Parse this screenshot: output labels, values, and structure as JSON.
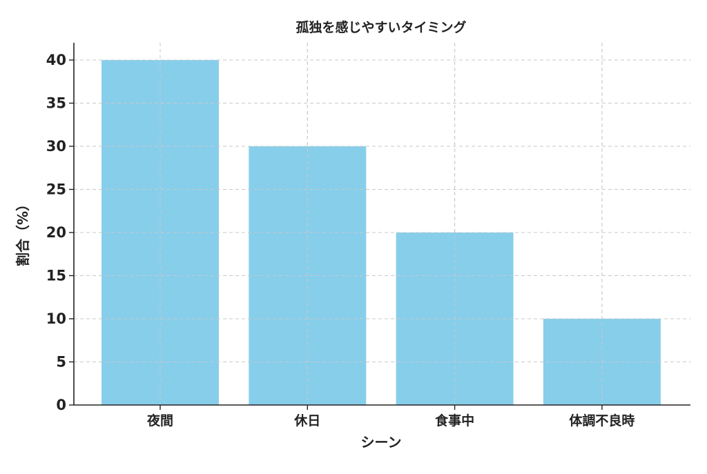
{
  "chart_data": {
    "type": "bar",
    "title": "孤独を感じやすいタイミング",
    "xlabel": "シーン",
    "ylabel": "割合（%）",
    "categories": [
      "夜間",
      "休日",
      "食事中",
      "体調不良時"
    ],
    "values": [
      40,
      30,
      20,
      10
    ],
    "ylim": [
      0,
      42
    ],
    "yticks": [
      0,
      5,
      10,
      15,
      20,
      25,
      30,
      35,
      40
    ],
    "grid": true,
    "bar_color": "#87CEEB",
    "legend": "none"
  }
}
